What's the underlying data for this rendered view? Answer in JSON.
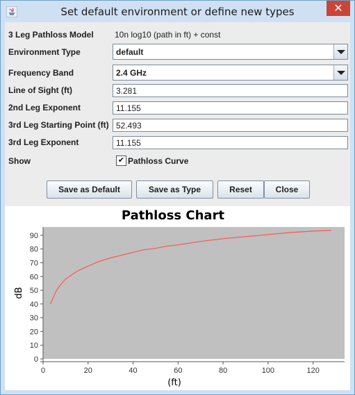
{
  "window": {
    "title": "Set default environment or define new types",
    "close_glyph": "✕"
  },
  "form": {
    "model_label": "3 Leg Pathloss Model",
    "model_value": "10n log10 (path in ft) + const",
    "env_label": "Environment Type",
    "env_value": "default",
    "freq_label": "Frequency Band",
    "freq_value": "2.4 GHz",
    "los_label": "Line of Sight (ft)",
    "los_value": "3.281",
    "leg2_label": "2nd Leg Exponent",
    "leg2_value": "11.155",
    "leg3start_label": "3rd Leg Starting Point (ft)",
    "leg3start_value": "52.493",
    "leg3_label": "3rd Leg Exponent",
    "leg3_value": "11.155",
    "show_label": "Show",
    "show_checkbox_label": "Pathloss Curve",
    "show_checked": true,
    "check_glyph": "✔"
  },
  "buttons": {
    "save_default": "Save as Default",
    "save_type": "Save as Type",
    "reset": "Reset",
    "close": "Close"
  },
  "chart_data": {
    "type": "line",
    "title": "Pathloss Chart",
    "xlabel": "(ft)",
    "ylabel": "dB",
    "xlim": [
      0,
      134
    ],
    "ylim": [
      0,
      96
    ],
    "x_ticks": [
      0,
      20,
      40,
      60,
      80,
      100,
      120
    ],
    "y_ticks": [
      0,
      10,
      20,
      30,
      40,
      50,
      60,
      70,
      80,
      90
    ],
    "grid": false,
    "plot_background": "#c0c0c0",
    "series": [
      {
        "color": "#ff5555",
        "x": [
          3.3,
          6,
          8,
          10,
          13,
          16,
          20,
          25,
          30,
          35,
          40,
          45,
          50,
          55,
          60,
          70,
          80,
          90,
          100,
          110,
          120,
          128
        ],
        "y": [
          40,
          50,
          54.5,
          58,
          61.5,
          64.5,
          67.5,
          71,
          73.5,
          75.5,
          77.5,
          79.5,
          80.5,
          82,
          83,
          85.5,
          87.5,
          89,
          90.5,
          92,
          93,
          93.5
        ]
      }
    ]
  }
}
